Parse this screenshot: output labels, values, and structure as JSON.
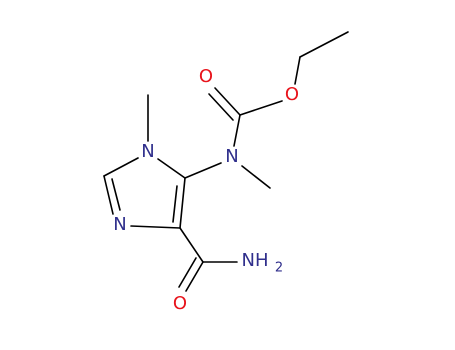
{
  "atoms": [
    {
      "label": "O"
    },
    {
      "label": "O"
    },
    {
      "label": "N"
    },
    {
      "label": "N"
    },
    {
      "label": "N"
    },
    {
      "label": "O"
    },
    {
      "label": "NH",
      "subscript": "2"
    }
  ]
}
